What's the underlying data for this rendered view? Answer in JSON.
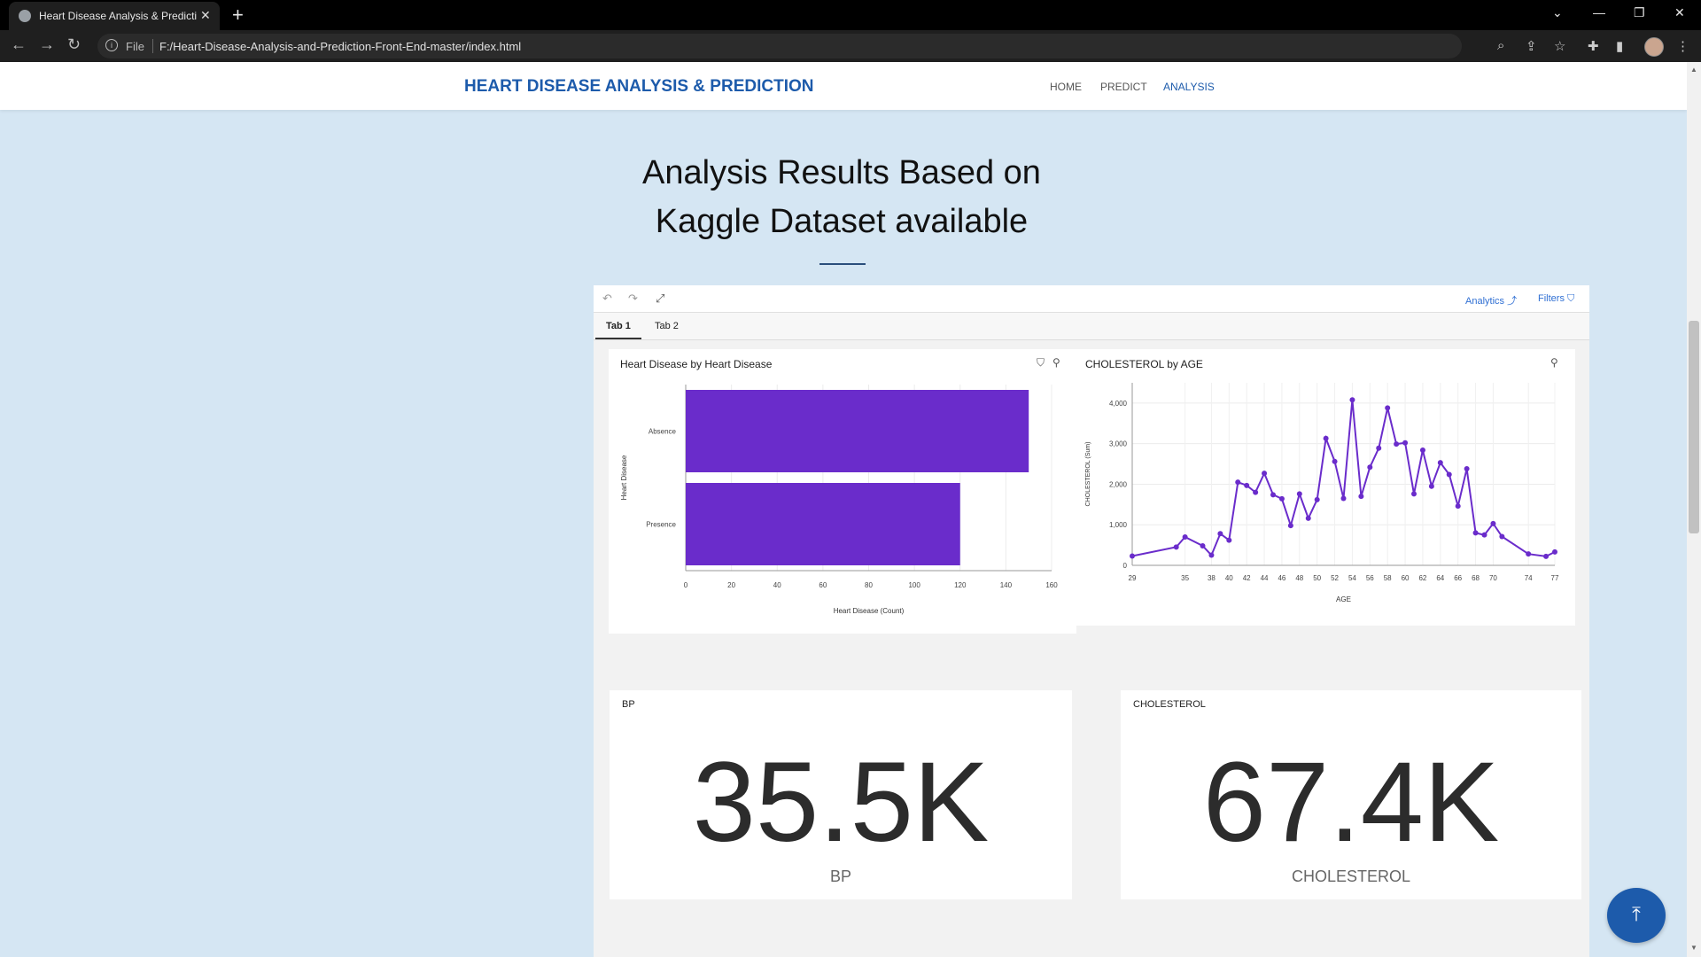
{
  "browser": {
    "tab_title": "Heart Disease Analysis & Predicti",
    "omnibox_file_label": "File",
    "url": "F:/Heart-Disease-Analysis-and-Prediction-Front-End-master/index.html"
  },
  "site": {
    "brand": "HEART DISEASE ANALYSIS & PREDICTION",
    "nav": [
      "HOME",
      "PREDICT",
      "ANALYSIS"
    ],
    "active_nav": "ANALYSIS",
    "heading_line1": "Analysis Results Based on",
    "heading_line2": "Kaggle Dataset available"
  },
  "dashboard": {
    "analytics_label": "Analytics",
    "filters_label": "Filters",
    "tabs": [
      "Tab 1",
      "Tab 2"
    ],
    "active_tab": "Tab 1"
  },
  "chart_data": [
    {
      "type": "bar",
      "orientation": "horizontal",
      "title": "Heart Disease by Heart Disease",
      "categories": [
        "Absence",
        "Presence"
      ],
      "values": [
        150,
        120
      ],
      "xlabel": "Heart Disease (Count)",
      "ylabel": "Heart Disease",
      "xlim": [
        0,
        160
      ],
      "xticks": [
        "0",
        "20",
        "40",
        "60",
        "80",
        "100",
        "120",
        "140",
        "160"
      ],
      "grid": true,
      "color": "#6a2ccb"
    },
    {
      "type": "line",
      "title": "CHOLESTEROL by AGE",
      "x": [
        29,
        34,
        35,
        37,
        38,
        39,
        40,
        41,
        42,
        43,
        44,
        45,
        46,
        47,
        48,
        49,
        50,
        51,
        52,
        53,
        54,
        55,
        56,
        57,
        58,
        59,
        60,
        61,
        62,
        63,
        64,
        65,
        66,
        67,
        68,
        69,
        70,
        71,
        74,
        76,
        77
      ],
      "y": [
        230,
        450,
        700,
        480,
        250,
        780,
        620,
        2050,
        1970,
        1800,
        2270,
        1740,
        1640,
        980,
        1760,
        1160,
        1620,
        3130,
        2560,
        1650,
        4080,
        1700,
        2420,
        2890,
        3880,
        2990,
        3020,
        1760,
        2840,
        1950,
        2530,
        2240,
        1460,
        2380,
        800,
        750,
        1030,
        710,
        280,
        220,
        330
      ],
      "xlabel": "AGE",
      "ylabel": "CHOLESTEROL (Sum)",
      "ylim": [
        0,
        4500
      ],
      "yticks": [
        "0",
        "1,000",
        "2,000",
        "3,000",
        "4,000"
      ],
      "xticks": [
        "29",
        "35",
        "38",
        "40",
        "42",
        "44",
        "46",
        "48",
        "50",
        "52",
        "54",
        "56",
        "58",
        "60",
        "62",
        "64",
        "66",
        "68",
        "70",
        "74",
        "77"
      ],
      "grid": true,
      "color": "#6a2ccb"
    }
  ],
  "kpis": [
    {
      "title": "BP",
      "value": "35.5K",
      "label": "BP"
    },
    {
      "title": "CHOLESTEROL",
      "value": "67.4K",
      "label": "CHOLESTEROL"
    }
  ],
  "back_to_top_icon": "arrow-up-to-line-icon"
}
